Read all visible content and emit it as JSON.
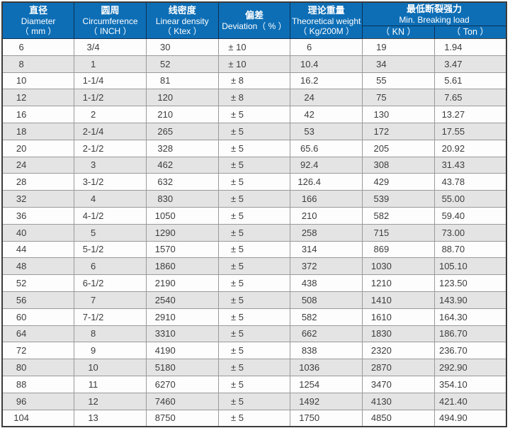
{
  "table": {
    "columns": [
      {
        "cn": "直径",
        "en": "Diameter",
        "unit": "（ mm ）"
      },
      {
        "cn": "圆周",
        "en": "Circumference",
        "unit": "（ INCH ）"
      },
      {
        "cn": "线密度",
        "en": "Linear density",
        "unit": "（ Ktex ）"
      },
      {
        "cn": "偏差",
        "en": "Deviation（ % ）",
        "unit": ""
      },
      {
        "cn": "理论重量",
        "en": "Theoretical weight",
        "unit": "（ Kg/200M ）"
      },
      {
        "cn": "最低断裂强力",
        "en": "Min. Breaking load",
        "subcols": [
          "（ KN ）",
          "（ Ton ）"
        ]
      }
    ],
    "rows": [
      [
        "6",
        "3/4",
        "30",
        "± 10",
        "6",
        "19",
        "1.94"
      ],
      [
        "8",
        "1",
        "52",
        "± 10",
        "10.4",
        "34",
        "3.47"
      ],
      [
        "10",
        "1-1/4",
        "81",
        "± 8",
        "16.2",
        "55",
        "5.61"
      ],
      [
        "12",
        "1-1/2",
        "120",
        "± 8",
        "24",
        "75",
        "7.65"
      ],
      [
        "16",
        "2",
        "210",
        "± 5",
        "42",
        "130",
        "13.27"
      ],
      [
        "18",
        "2-1/4",
        "265",
        "± 5",
        "53",
        "172",
        "17.55"
      ],
      [
        "20",
        "2-1/2",
        "328",
        "± 5",
        "65.6",
        "205",
        "20.92"
      ],
      [
        "24",
        "3",
        "462",
        "± 5",
        "92.4",
        "308",
        "31.43"
      ],
      [
        "28",
        "3-1/2",
        "632",
        "± 5",
        "126.4",
        "429",
        "43.78"
      ],
      [
        "32",
        "4",
        "830",
        "± 5",
        "166",
        "539",
        "55.00"
      ],
      [
        "36",
        "4-1/2",
        "1050",
        "± 5",
        "210",
        "582",
        "59.40"
      ],
      [
        "40",
        "5",
        "1290",
        "± 5",
        "258",
        "715",
        "73.00"
      ],
      [
        "44",
        "5-1/2",
        "1570",
        "± 5",
        "314",
        "869",
        "88.70"
      ],
      [
        "48",
        "6",
        "1860",
        "± 5",
        "372",
        "1030",
        "105.10"
      ],
      [
        "52",
        "6-1/2",
        "2190",
        "± 5",
        "438",
        "1210",
        "123.50"
      ],
      [
        "56",
        "7",
        "2540",
        "± 5",
        "508",
        "1410",
        "143.90"
      ],
      [
        "60",
        "7-1/2",
        "2910",
        "± 5",
        "582",
        "1610",
        "164.30"
      ],
      [
        "64",
        "8",
        "3310",
        "± 5",
        "662",
        "1830",
        "186.70"
      ],
      [
        "72",
        "9",
        "4190",
        "± 5",
        "838",
        "2320",
        "236.70"
      ],
      [
        "80",
        "10",
        "5180",
        "± 5",
        "1036",
        "2870",
        "292.90"
      ],
      [
        "88",
        "11",
        "6270",
        "± 5",
        "1254",
        "3470",
        "354.10"
      ],
      [
        "96",
        "12",
        "7460",
        "± 5",
        "1492",
        "4130",
        "421.40"
      ],
      [
        "104",
        "13",
        "8750",
        "± 5",
        "1750",
        "4850",
        "494.90"
      ]
    ]
  },
  "colors": {
    "header_bg": "#0d6eb6",
    "header_border": "#0c3052",
    "header_text": "#ffffff",
    "row_alt_bg": "#e4e4e4",
    "row_bg": "#fdfdfd",
    "grid_line": "#9a9a9a",
    "outer_border": "#3c3c3c",
    "body_text": "#3d3d3d"
  }
}
